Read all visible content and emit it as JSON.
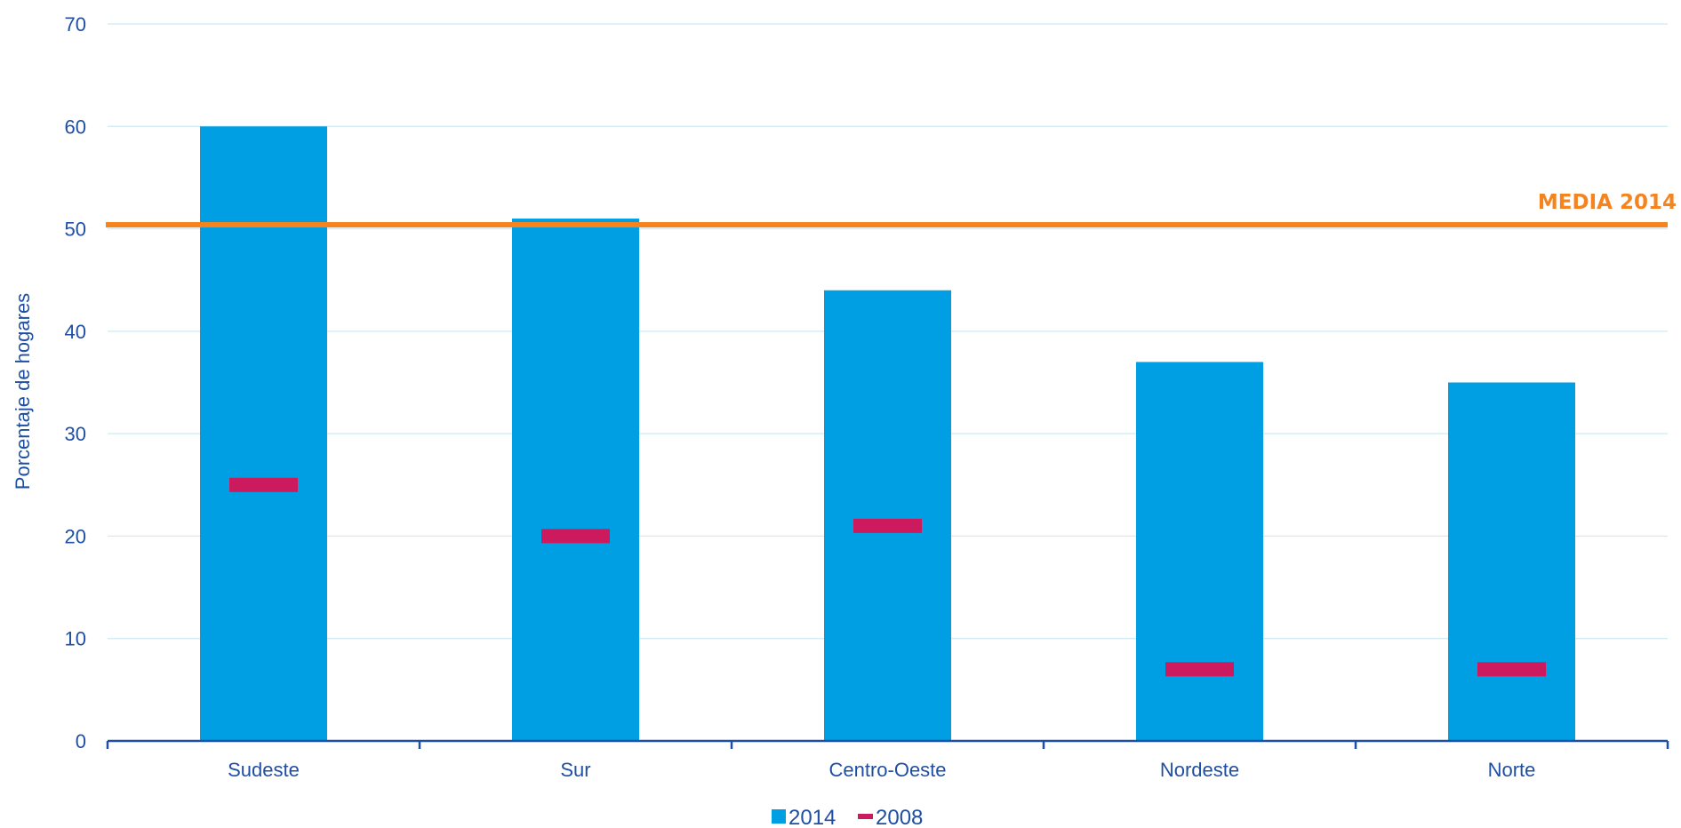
{
  "chart_data": {
    "type": "bar",
    "categories": [
      "Sudeste",
      "Sur",
      "Centro-Oeste",
      "Nordeste",
      "Norte"
    ],
    "series": [
      {
        "name": "2014",
        "kind": "bar",
        "color": "#009fe3",
        "values": [
          60,
          51,
          44,
          37,
          35
        ]
      },
      {
        "name": "2008",
        "kind": "marker",
        "color": "#cc1a5e",
        "values": [
          25,
          20,
          21,
          7,
          7
        ]
      }
    ],
    "reference_line": {
      "label": "MEDIA 2014",
      "value": 50.4,
      "color": "#f5841f"
    },
    "title": "",
    "xlabel": "",
    "ylabel": "Porcentaje de hogares",
    "ylim": [
      0,
      70
    ],
    "yticks": [
      0,
      10,
      20,
      30,
      40,
      50,
      60,
      70
    ],
    "grid": true,
    "legend_position": "bottom-center",
    "colors": {
      "axis": "#1f4fa3",
      "grid": "#cdeaf3"
    }
  }
}
